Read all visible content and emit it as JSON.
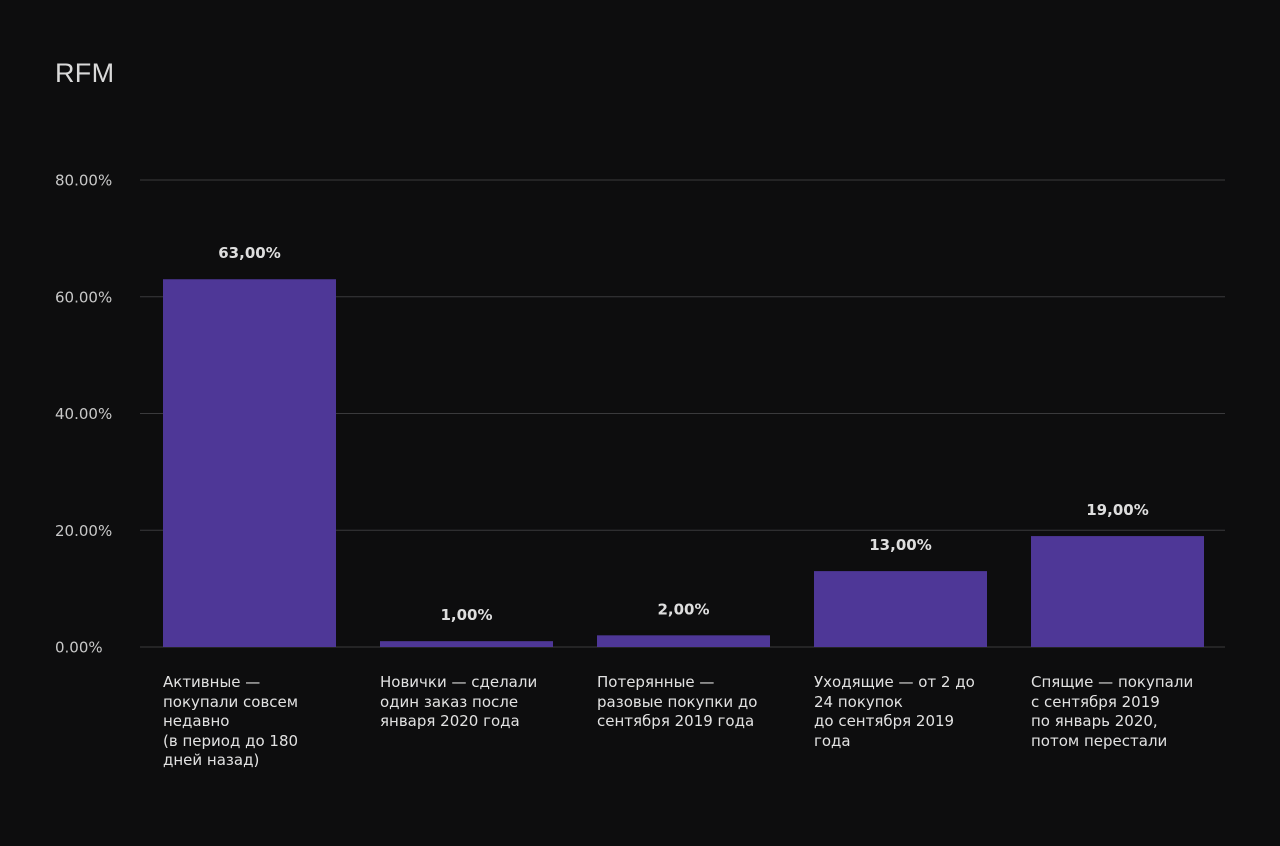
{
  "chart_data": {
    "type": "bar",
    "title": "RFM",
    "xlabel": "",
    "ylabel": "",
    "ylim": [
      0,
      80
    ],
    "yticks": [
      "0.00%",
      "20.00%",
      "40.00%",
      "60.00%",
      "80.00%"
    ],
    "grid": true,
    "categories": [
      "Активные —\nпокупали совсем\nнедавно\n(в период до 180\nдней назад)",
      "Новички — сделали\nодин заказ после\nянваря 2020 года",
      "Потерянные —\nразовые покупки до\nсентября 2019 года",
      "Уходящие — от 2 до\n24 покупок\nдо сентября 2019\nгода",
      "Спящие — покупали\nс сентября 2019\nпо январь 2020,\nпотом перестали"
    ],
    "values": [
      63,
      1,
      2,
      13,
      19
    ],
    "value_labels": [
      "63,00%",
      "1,00%",
      "2,00%",
      "13,00%",
      "19,00%"
    ]
  },
  "colors": {
    "bar": "#4e3797",
    "grid": "#3a3a3c",
    "background": "#0d0d0e"
  }
}
